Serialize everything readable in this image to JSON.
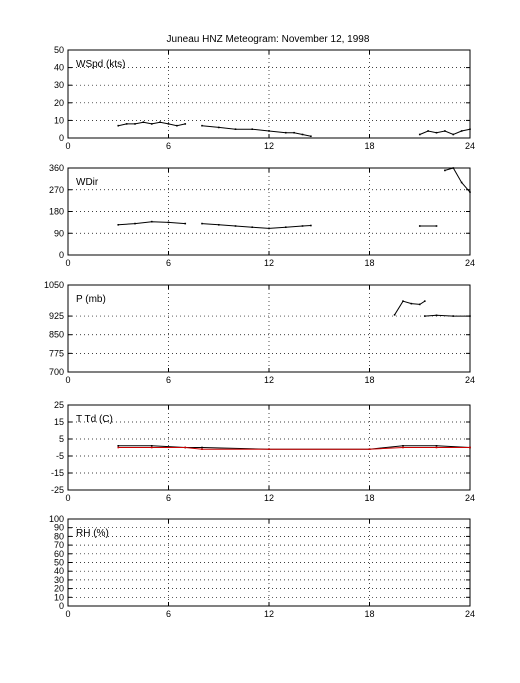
{
  "title": "Juneau HNZ Meteogram:  November 12, 1998",
  "chart_data": [
    {
      "type": "line",
      "label": "WSpd (kts)",
      "ylim": [
        0,
        50
      ],
      "yticks": [
        0,
        10,
        20,
        30,
        40,
        50
      ],
      "xlim": [
        0,
        24
      ],
      "xticks": [
        0,
        6,
        12,
        18,
        24
      ],
      "grid": true,
      "series": [
        {
          "color": "#000000",
          "points": [
            [
              3,
              7
            ],
            [
              3.5,
              8
            ],
            [
              4,
              8
            ],
            [
              4.5,
              9
            ],
            [
              5,
              8
            ],
            [
              5.5,
              9
            ],
            [
              6,
              8
            ],
            [
              6.5,
              7
            ],
            [
              7,
              8
            ]
          ]
        },
        {
          "color": "#000000",
          "points": [
            [
              8,
              7
            ],
            [
              9,
              6
            ],
            [
              10,
              5
            ],
            [
              11,
              5
            ],
            [
              12,
              4
            ],
            [
              13,
              3
            ],
            [
              13.5,
              3
            ],
            [
              14,
              2
            ],
            [
              14.5,
              1
            ]
          ]
        },
        {
          "color": "#000000",
          "points": [
            [
              21,
              2
            ],
            [
              21.5,
              4
            ],
            [
              22,
              3
            ],
            [
              22.5,
              4
            ],
            [
              23,
              2
            ],
            [
              23.5,
              4
            ],
            [
              24,
              5
            ]
          ]
        }
      ]
    },
    {
      "type": "line",
      "label": "WDir",
      "ylim": [
        0,
        360
      ],
      "yticks": [
        0,
        90,
        180,
        270,
        360
      ],
      "xlim": [
        0,
        24
      ],
      "xticks": [
        0,
        6,
        12,
        18,
        24
      ],
      "grid": true,
      "series": [
        {
          "color": "#000000",
          "points": [
            [
              3,
              125
            ],
            [
              4,
              130
            ],
            [
              5,
              138
            ],
            [
              6,
              135
            ],
            [
              7,
              130
            ]
          ]
        },
        {
          "color": "#000000",
          "points": [
            [
              8,
              130
            ],
            [
              9,
              125
            ],
            [
              10,
              120
            ],
            [
              11,
              115
            ],
            [
              12,
              110
            ],
            [
              13,
              115
            ],
            [
              14,
              120
            ],
            [
              14.5,
              122
            ]
          ]
        },
        {
          "color": "#000000",
          "points": [
            [
              21,
              120
            ],
            [
              22,
              120
            ]
          ]
        },
        {
          "color": "#000000",
          "points": [
            [
              22.5,
              350
            ],
            [
              23,
              360
            ],
            [
              23.5,
              300
            ],
            [
              24,
              260
            ]
          ]
        }
      ]
    },
    {
      "type": "line",
      "label": "P (mb)",
      "ylim": [
        700,
        1050
      ],
      "yticks": [
        700,
        775,
        850,
        925,
        1050
      ],
      "ytick_labels": [
        "700",
        "775",
        "850",
        "925",
        "1050"
      ],
      "xlim": [
        0,
        24
      ],
      "xticks": [
        0,
        6,
        12,
        18,
        24
      ],
      "grid": true,
      "series": [
        {
          "color": "#000000",
          "points": [
            [
              19.5,
              930
            ],
            [
              20,
              985
            ],
            [
              20.5,
              975
            ],
            [
              21,
              972
            ],
            [
              21.3,
              985
            ]
          ]
        },
        {
          "color": "#000000",
          "points": [
            [
              21.3,
              925
            ],
            [
              22,
              928
            ],
            [
              23,
              925
            ],
            [
              24,
              925
            ]
          ]
        }
      ]
    },
    {
      "type": "line",
      "label": "T Td (C)",
      "ylim": [
        -25,
        25
      ],
      "yticks": [
        -25,
        -15,
        -5,
        5,
        15,
        25
      ],
      "xlim": [
        0,
        24
      ],
      "xticks": [
        0,
        6,
        12,
        18,
        24
      ],
      "grid": true,
      "series": [
        {
          "color": "#000000",
          "points": [
            [
              3,
              1
            ],
            [
              5,
              1
            ],
            [
              7,
              0
            ],
            [
              8,
              0
            ],
            [
              12,
              -1
            ],
            [
              18,
              -1
            ],
            [
              20,
              1
            ],
            [
              22,
              1
            ],
            [
              24,
              0
            ]
          ]
        },
        {
          "color": "#cc0000",
          "points": [
            [
              3,
              0
            ],
            [
              5,
              0
            ],
            [
              7,
              0
            ],
            [
              8,
              -1
            ],
            [
              12,
              -1
            ],
            [
              18,
              -1
            ],
            [
              20,
              0
            ],
            [
              22,
              0
            ],
            [
              24,
              0
            ]
          ]
        }
      ]
    },
    {
      "type": "line",
      "label": "RH (%)",
      "ylim": [
        0,
        100
      ],
      "yticks": [
        0,
        10,
        20,
        30,
        40,
        50,
        60,
        70,
        80,
        90,
        100
      ],
      "xlim": [
        0,
        24
      ],
      "xticks": [
        0,
        6,
        12,
        18,
        24
      ],
      "grid": true,
      "series": []
    }
  ]
}
